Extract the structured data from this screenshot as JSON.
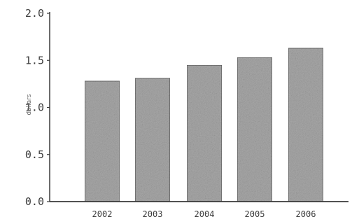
{
  "chart_data": {
    "type": "bar",
    "categories": [
      "2002",
      "2003",
      "2004",
      "2005",
      "2006"
    ],
    "values": [
      1.28,
      1.31,
      1.45,
      1.53,
      1.63
    ],
    "title": "",
    "xlabel": "",
    "ylabel": "dollars",
    "ylim": [
      0,
      2.0
    ],
    "yticks": [
      "0.0",
      "0.5",
      "1.0",
      "1.5",
      "2.0"
    ],
    "grid": false,
    "legend": "none",
    "colors": {
      "bar_fill": "#a9a9a9",
      "bar_edge": "#5a5a5a",
      "axis": "#3a3a3a"
    }
  }
}
